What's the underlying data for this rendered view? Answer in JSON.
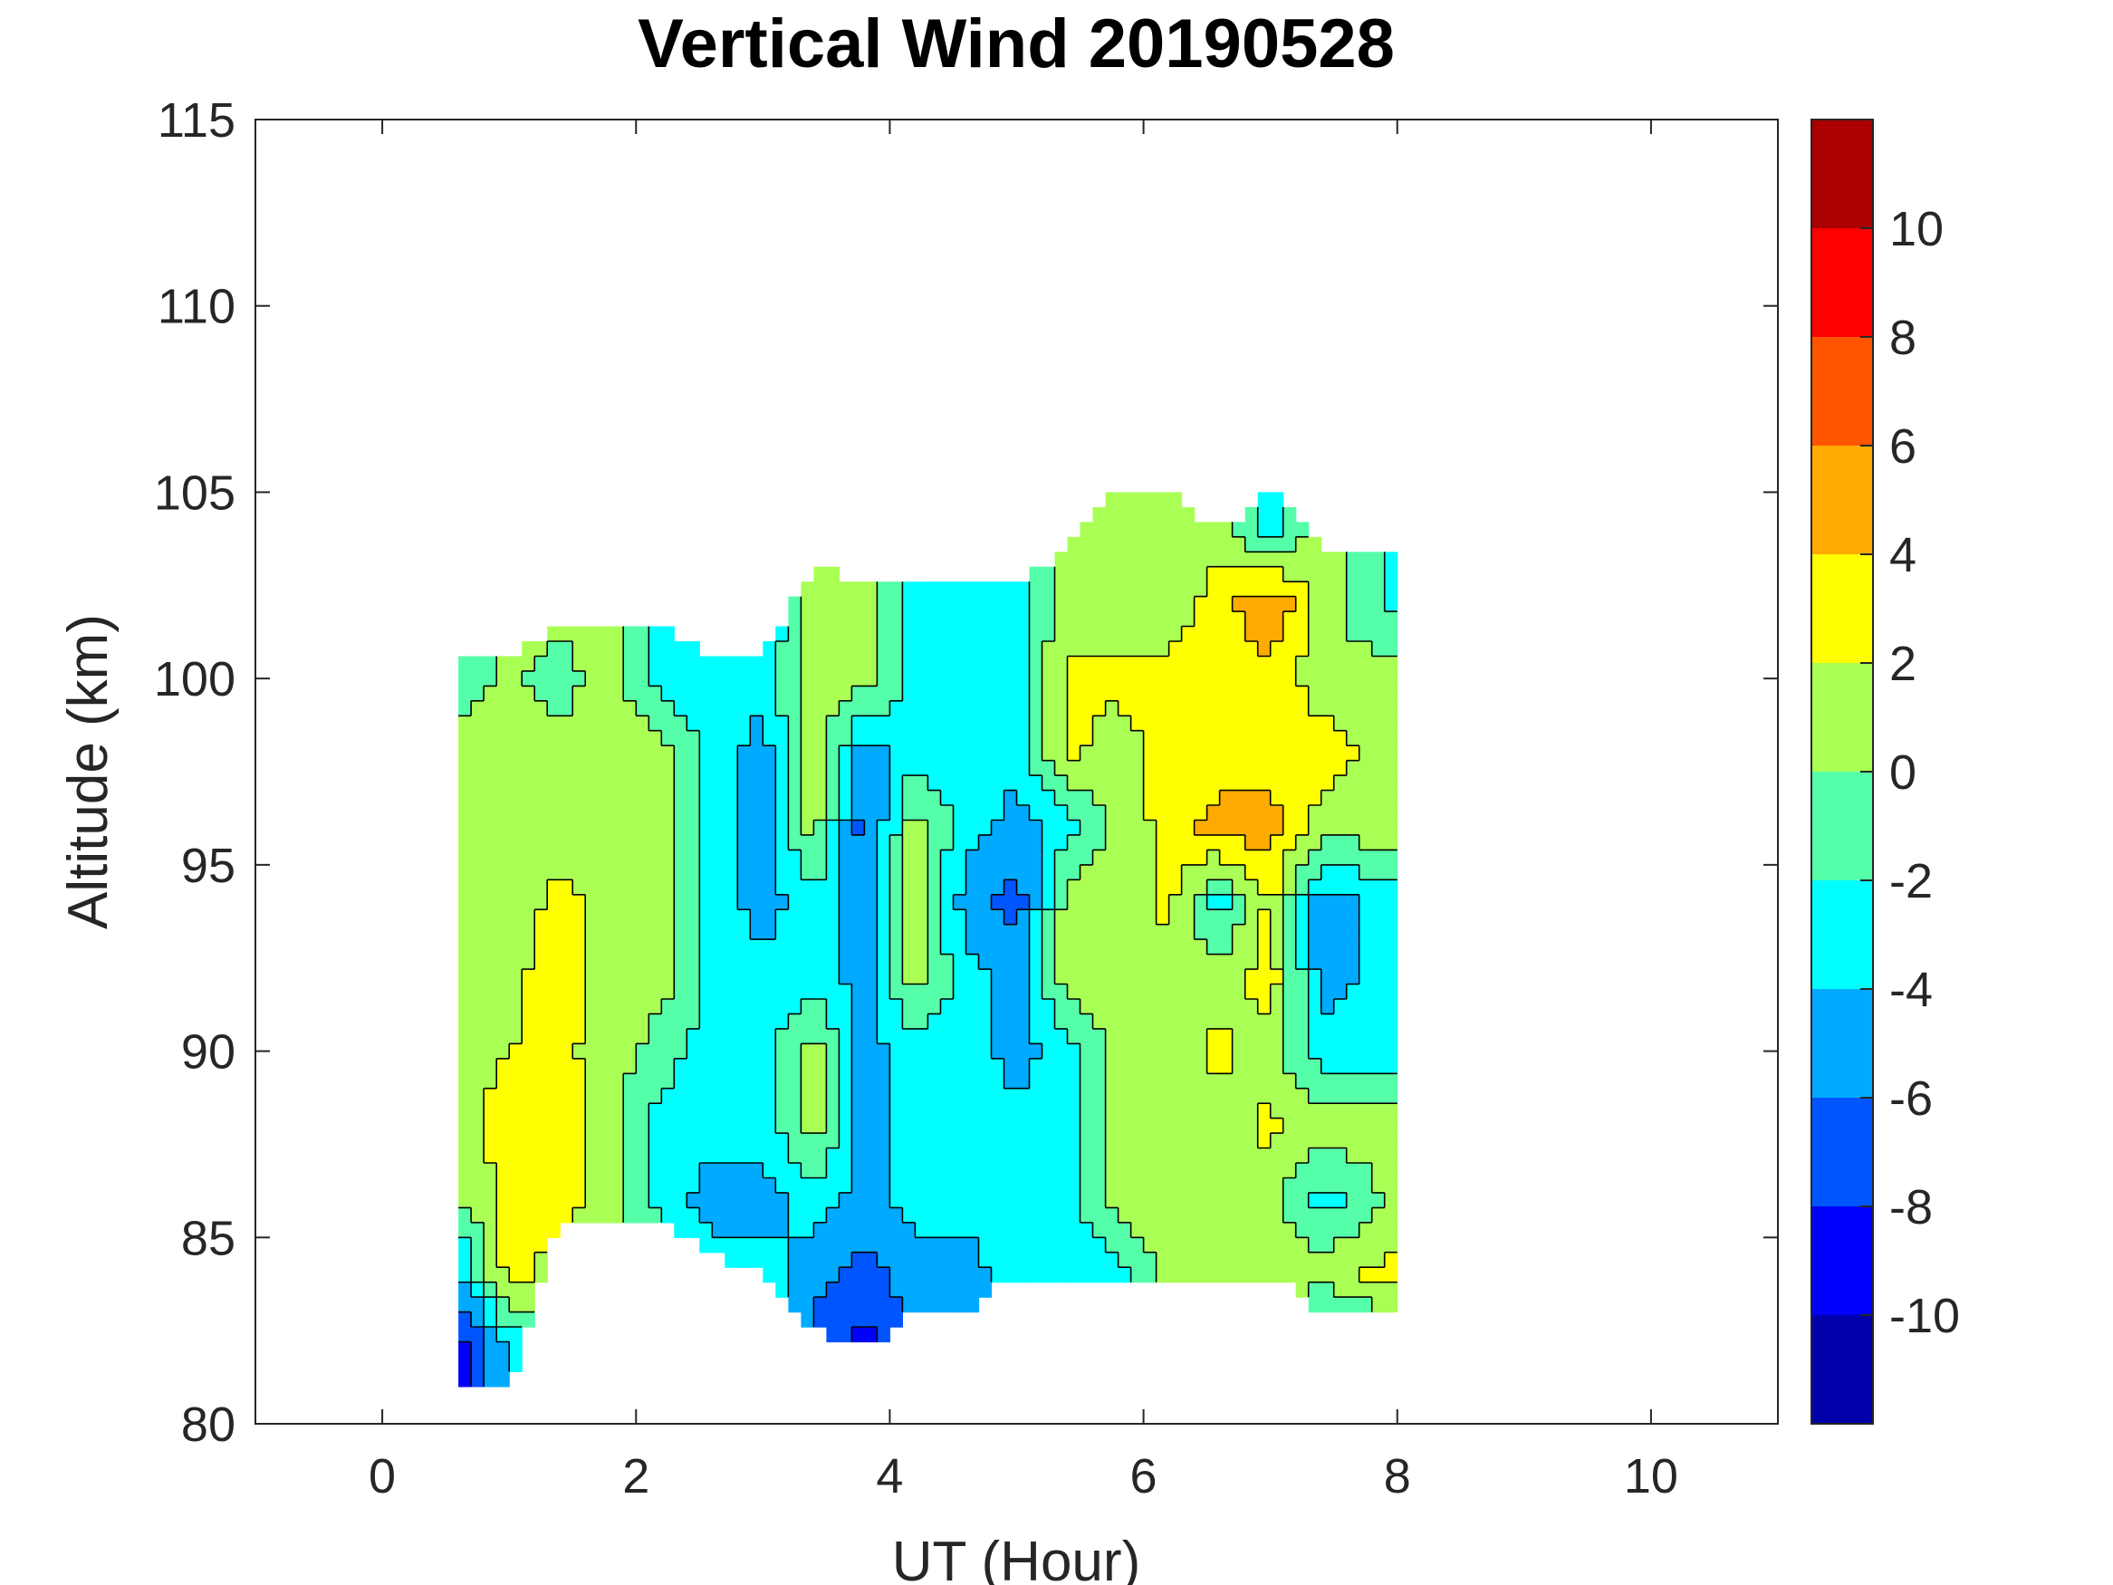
{
  "chart_data": {
    "type": "heatmap",
    "subtype": "filled-contour",
    "title": "Vertical Wind 20190528",
    "xlabel": "UT (Hour)",
    "ylabel": "Altitude (km)",
    "xlim": [
      -1,
      11
    ],
    "ylim": [
      80,
      115
    ],
    "xticks": [
      "0",
      "2",
      "4",
      "6",
      "8",
      "10"
    ],
    "yticks": [
      "80",
      "85",
      "90",
      "95",
      "100",
      "105",
      "110",
      "115"
    ],
    "grid": false,
    "colorbar": {
      "levels": [
        -12,
        -10,
        -8,
        -6,
        -4,
        -2,
        0,
        2,
        4,
        6,
        8,
        10,
        12
      ],
      "colors": [
        "#0000aa",
        "#0000ff",
        "#0055ff",
        "#00aaff",
        "#00ffff",
        "#55ffaa",
        "#aaff55",
        "#ffff00",
        "#ffaa00",
        "#ff5500",
        "#ff0000",
        "#aa0000"
      ],
      "tick_labels": [
        "-10",
        "-8",
        "-6",
        "-4",
        "-2",
        "0",
        "2",
        "4",
        "6",
        "8",
        "10"
      ],
      "placement": "right"
    },
    "x": [
      0.6,
      1.0,
      1.4,
      1.8,
      2.2,
      2.6,
      3.0,
      3.4,
      3.8,
      4.2,
      4.6,
      5.0,
      5.4,
      5.8,
      6.2,
      6.6,
      7.0,
      7.4,
      8.0
    ],
    "altitude": [
      82,
      84,
      86,
      88,
      90,
      92,
      94,
      96,
      98,
      100,
      102,
      104
    ],
    "valid_top": [
      100.5,
      100.5,
      101.5,
      101.5,
      101.5,
      100.5,
      100.5,
      103,
      102.5,
      102.5,
      102.5,
      102.5,
      103.5,
      105,
      105,
      104,
      105,
      103.5,
      103.5
    ],
    "valid_bottom": [
      81,
      81,
      85.5,
      85.5,
      85.5,
      84.5,
      84,
      82.5,
      82,
      83,
      83,
      84,
      84,
      84,
      84,
      84,
      84,
      83,
      83
    ],
    "z": [
      [
        -9,
        -5,
        0.5,
        1,
        1.5,
        1,
        0.5,
        1,
        1,
        -1,
        -3,
        -3
      ],
      [
        -4,
        3,
        2.5,
        3,
        2,
        1.5,
        1,
        1,
        1,
        0.5,
        1,
        1
      ],
      [
        1,
        1,
        3,
        3,
        2.5,
        3,
        2.5,
        1,
        1,
        -1,
        1,
        1
      ],
      [
        1,
        1,
        1,
        1,
        1,
        1,
        1.5,
        1,
        1,
        1,
        2,
        2
      ],
      [
        1,
        1,
        -3,
        -3,
        -1,
        1,
        1,
        1,
        1,
        -3,
        -3,
        -3
      ],
      [
        1,
        -3,
        -5,
        -3,
        -3,
        -3,
        -3,
        -3,
        -3,
        -3,
        -3,
        -3
      ],
      [
        -3,
        -3,
        -5,
        -3,
        -3,
        -3,
        -5,
        -5,
        -5,
        -3,
        -5,
        -5
      ],
      [
        -7,
        -5,
        -3,
        1,
        1,
        -3,
        -3,
        1,
        1,
        1,
        1,
        1
      ],
      [
        -9,
        -7,
        -5,
        -5,
        -5,
        -5,
        -5,
        -7,
        -5,
        1,
        1,
        1
      ],
      [
        -5,
        -5,
        -3,
        -3,
        -3,
        1,
        1,
        1,
        -3,
        -3,
        -3,
        -3
      ],
      [
        -5,
        -5,
        -3,
        -3,
        -3,
        -3,
        -5,
        -3,
        -3,
        -3,
        -3,
        -3
      ],
      [
        -3,
        -3,
        -3,
        -3,
        -5,
        -5,
        -7,
        -5,
        -3,
        -3,
        -3,
        -3
      ],
      [
        -3,
        -3,
        -3,
        -3,
        -3,
        1,
        1,
        -3,
        2.5,
        2.5,
        1,
        1
      ],
      [
        -3,
        -3,
        1,
        1,
        1,
        1,
        1,
        1,
        1,
        2.5,
        1,
        1
      ],
      [
        1,
        1,
        1,
        1,
        1,
        1,
        2.5,
        2.5,
        3,
        2.5,
        1,
        1
      ],
      [
        1,
        1,
        1,
        1,
        2.5,
        1,
        -3,
        5,
        2.5,
        2.5,
        3,
        1
      ],
      [
        1,
        1,
        1,
        2.5,
        1,
        3,
        2.5,
        5,
        3,
        3,
        6,
        -3
      ],
      [
        -5,
        1,
        -3,
        1,
        -3,
        -5,
        -5,
        1,
        3,
        1,
        1,
        1
      ],
      [
        -3,
        3,
        1,
        1,
        -3,
        -3,
        -3,
        1,
        1,
        1,
        -3,
        -3
      ]
    ]
  }
}
